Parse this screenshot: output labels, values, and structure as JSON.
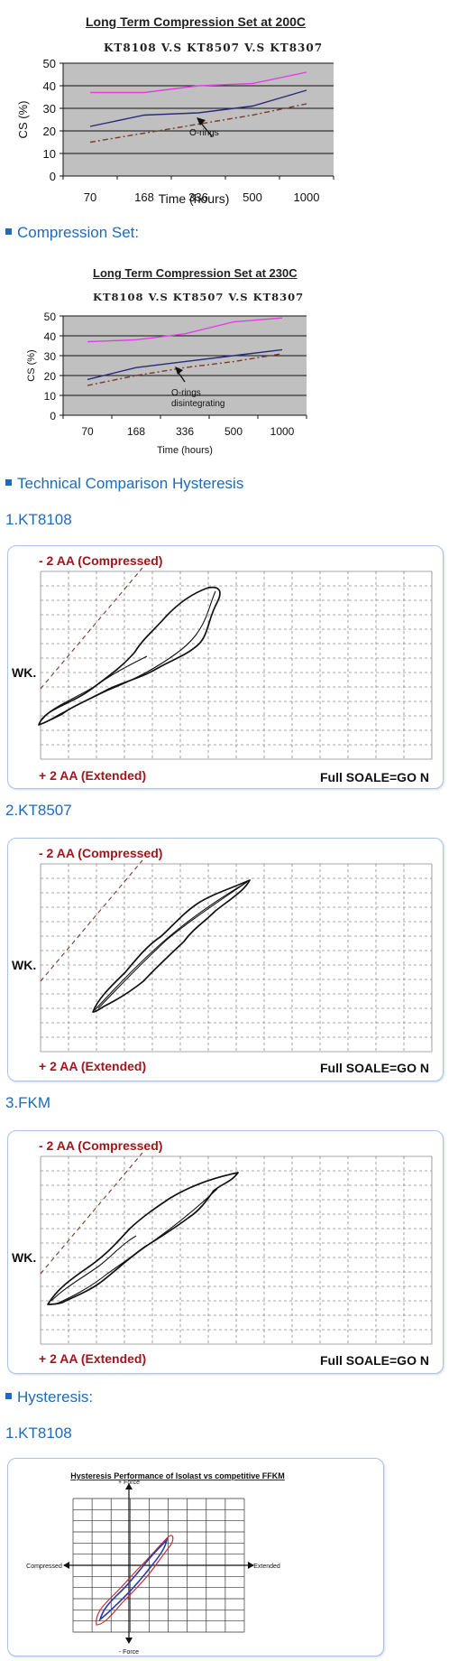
{
  "chart1": {
    "title": "Long Term Compression Set at 200C",
    "subtitle": "KT8108 V.S KT8507 V.S KT8307",
    "annotation": "O-rings"
  },
  "chart2": {
    "title": "Long Term Compression Set at 230C",
    "subtitle": "KT8108 V.S KT8507 V.S KT8307",
    "annotation_line1": "O-rings",
    "annotation_line2": "disintegrating"
  },
  "headings": {
    "compression_set": "Compression Set:",
    "technical_comparison": "Technical Comparison Hysteresis",
    "item1": "1.KT8108",
    "item2": "2.KT8507",
    "item3": "3.FKM",
    "hysteresis": "Hysteresis:",
    "item4": "1.KT8108"
  },
  "hysteresis_labels": {
    "compressed": "- 2 AA (Compressed)",
    "extended": "+ 2 AA (Extended)",
    "wk": "WK.",
    "full_scale": "Full SOALE=GO   N"
  },
  "colors": {
    "magenta": "#e040e0",
    "navy": "#2a2a7a",
    "brown_dash": "#7a3a2a",
    "plot_bg": "#c0c0c0",
    "heading_blue": "#1f6bb5",
    "label_red": "#a0161c"
  },
  "chart_data": [
    {
      "type": "line",
      "title": "Long Term Compression Set at 200C",
      "xlabel": "Time (hours)",
      "ylabel": "CS (%)",
      "categories": [
        "70",
        "168",
        "336",
        "500",
        "1000"
      ],
      "ylim": [
        0,
        50
      ],
      "yticks": [
        0,
        10,
        20,
        30,
        40,
        50
      ],
      "grid": true,
      "series": [
        {
          "color": "#e040e0",
          "style": "solid",
          "values": [
            37,
            37,
            40,
            41,
            46
          ]
        },
        {
          "color": "#2a2a7a",
          "style": "solid",
          "values": [
            22,
            27,
            28,
            31,
            38
          ]
        },
        {
          "color": "#7a3a2a",
          "style": "dashdot",
          "values": [
            15,
            19,
            23,
            27,
            32
          ]
        }
      ]
    },
    {
      "type": "line",
      "title": "Long Term Compression Set at 230C",
      "xlabel": "Time (hours)",
      "ylabel": "CS (%)",
      "categories": [
        "70",
        "168",
        "336",
        "500",
        "1000"
      ],
      "ylim": [
        0,
        50
      ],
      "yticks": [
        0,
        10,
        20,
        30,
        40,
        50
      ],
      "grid": true,
      "series": [
        {
          "color": "#e040e0",
          "style": "solid",
          "values": [
            37,
            38,
            41,
            47,
            49
          ]
        },
        {
          "color": "#2a2a7a",
          "style": "solid",
          "values": [
            18,
            24,
            27,
            30,
            33
          ]
        },
        {
          "color": "#7a3a2a",
          "style": "dashdot",
          "values": [
            15,
            20,
            24,
            27,
            31
          ]
        }
      ]
    },
    {
      "type": "line",
      "title": "Hysteresis Performance of Isolast vs competitive FFKM",
      "annotations": [
        "+ Force",
        "- Force",
        "Compressed",
        "Extended"
      ],
      "series": [
        {
          "color": "#2a3ab0",
          "style": "solid",
          "values": []
        },
        {
          "color": "#c03030",
          "style": "solid",
          "values": []
        }
      ]
    }
  ]
}
